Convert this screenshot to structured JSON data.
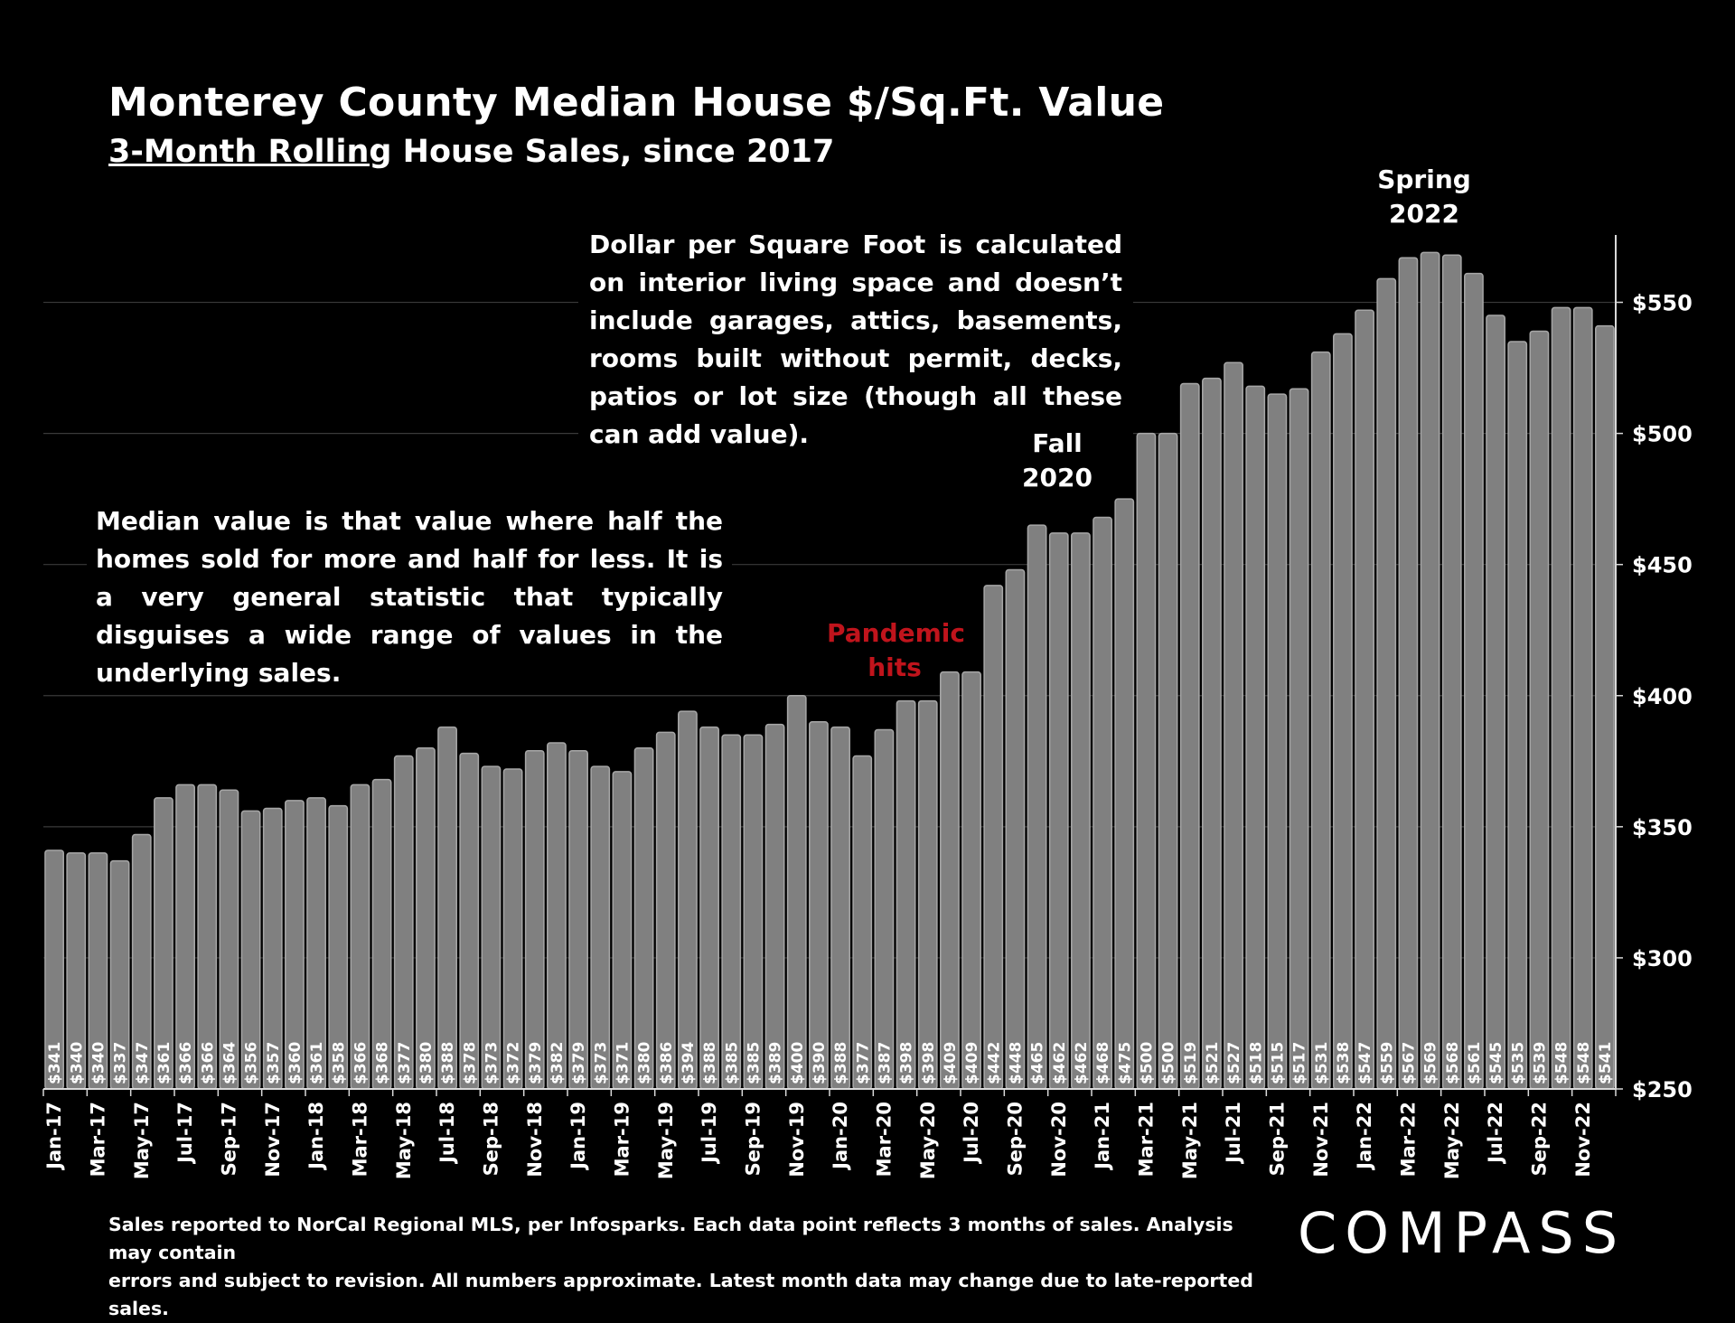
{
  "header": {
    "title": "Monterey County Median House $/Sq.Ft. Value",
    "subtitle_underlined": "3-Month Rolling",
    "subtitle_rest": " House Sales, since 2017"
  },
  "notes": {
    "dollar_per_sqft": "Dollar per Square Foot is calculated on interior living space and doesn’t include garages, attics, basements, rooms built without permit, decks, patios or lot size (though all these can add value).",
    "median": "Median value is that value where half the homes sold for more and half for less. It is a very general statistic that typically disguises a wide range of values in the underlying sales."
  },
  "annotations": {
    "spring_line1": "Spring",
    "spring_line2": "2022",
    "fall_line1": "Fall",
    "fall_line2": "2020",
    "pandemic_line1": "Pandemic",
    "pandemic_line2": "hits"
  },
  "footer": {
    "line1": "Sales reported to NorCal Regional MLS, per Infosparks. Each data point reflects 3 months of sales. Analysis may contain",
    "line2": "errors and subject to revision. All numbers approximate. Latest month data may change due to late-reported sales."
  },
  "logo": {
    "text": "COMPASS"
  },
  "colors": {
    "bar": "#808080",
    "bar_outline": "#a6a6a6",
    "gridline": "#3a3a3a",
    "pandemic": "#c0141c",
    "background": "#000000"
  },
  "chart_data": {
    "type": "bar",
    "title": "Monterey County Median House $/Sq.Ft. Value",
    "subtitle": "3-Month Rolling House Sales, since 2017",
    "ylabel": "",
    "xlabel": "",
    "ylim": [
      250,
      575
    ],
    "yticks": [
      250,
      300,
      350,
      400,
      450,
      500,
      550
    ],
    "ytick_labels": [
      "$250",
      "$300",
      "$350",
      "$400",
      "$450",
      "$500",
      "$550"
    ],
    "y_axis_side": "right",
    "grid": true,
    "value_label_prefix": "$",
    "categories": [
      "Jan-17",
      "Feb-17",
      "Mar-17",
      "Apr-17",
      "May-17",
      "Jun-17",
      "Jul-17",
      "Aug-17",
      "Sep-17",
      "Oct-17",
      "Nov-17",
      "Dec-17",
      "Jan-18",
      "Feb-18",
      "Mar-18",
      "Apr-18",
      "May-18",
      "Jun-18",
      "Jul-18",
      "Aug-18",
      "Sep-18",
      "Oct-18",
      "Nov-18",
      "Dec-18",
      "Jan-19",
      "Feb-19",
      "Mar-19",
      "Apr-19",
      "May-19",
      "Jun-19",
      "Jul-19",
      "Aug-19",
      "Sep-19",
      "Oct-19",
      "Nov-19",
      "Dec-19",
      "Jan-20",
      "Feb-20",
      "Mar-20",
      "Apr-20",
      "May-20",
      "Jun-20",
      "Jul-20",
      "Aug-20",
      "Sep-20",
      "Oct-20",
      "Nov-20",
      "Dec-20",
      "Jan-21",
      "Feb-21",
      "Mar-21",
      "Apr-21",
      "May-21",
      "Jun-21",
      "Jul-21",
      "Aug-21",
      "Sep-21",
      "Oct-21",
      "Nov-21",
      "Dec-21",
      "Jan-22",
      "Feb-22",
      "Mar-22",
      "Apr-22",
      "May-22",
      "Jun-22",
      "Jul-22",
      "Aug-22",
      "Sep-22",
      "Oct-22",
      "Nov-22",
      "Dec-22"
    ],
    "x_tick_labels_shown": [
      "Jan-17",
      "Mar-17",
      "May-17",
      "Jul-17",
      "Sep-17",
      "Nov-17",
      "Jan-18",
      "Mar-18",
      "May-18",
      "Jul-18",
      "Sep-18",
      "Nov-18",
      "Jan-19",
      "Mar-19",
      "May-19",
      "Jul-19",
      "Sep-19",
      "Nov-19",
      "Jan-20",
      "Mar-20",
      "May-20",
      "Jul-20",
      "Sep-20",
      "Nov-20",
      "Jan-21",
      "Mar-21",
      "May-21",
      "Jul-21",
      "Sep-21",
      "Nov-21",
      "Jan-22",
      "Mar-22",
      "May-22",
      "Jul-22",
      "Sep-22",
      "Nov-22"
    ],
    "values": [
      341,
      340,
      340,
      337,
      347,
      361,
      366,
      366,
      364,
      356,
      357,
      360,
      361,
      358,
      366,
      368,
      377,
      380,
      388,
      378,
      373,
      372,
      379,
      382,
      379,
      373,
      371,
      380,
      386,
      394,
      388,
      385,
      385,
      389,
      400,
      390,
      388,
      377,
      387,
      398,
      398,
      409,
      409,
      442,
      448,
      465,
      462,
      462,
      468,
      475,
      500,
      500,
      519,
      521,
      527,
      518,
      515,
      517,
      531,
      538,
      547,
      559,
      567,
      569,
      568,
      561,
      545,
      535,
      539,
      548,
      548,
      541
    ]
  }
}
